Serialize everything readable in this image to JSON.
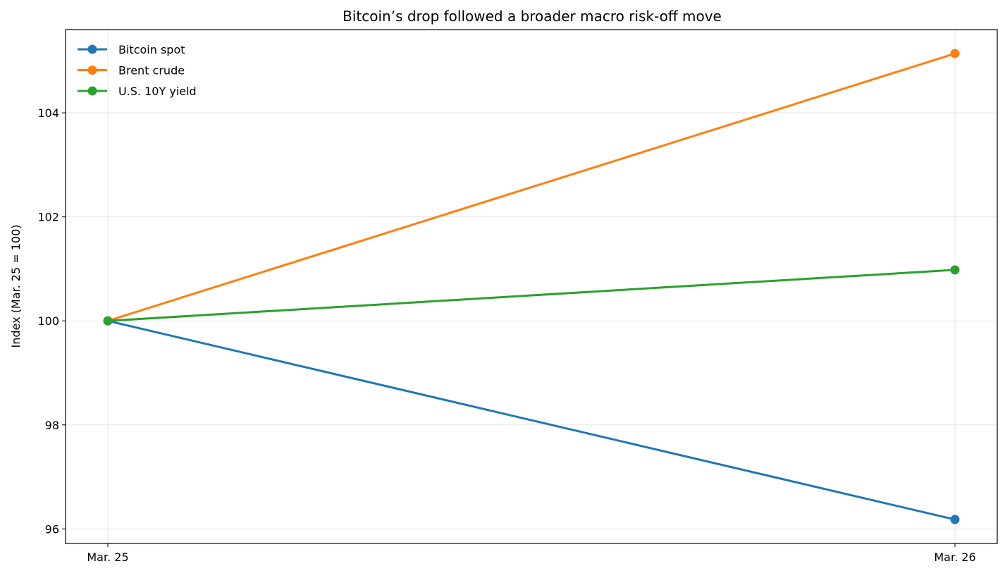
{
  "chart_data": {
    "type": "line",
    "title": "Bitcoin’s drop followed a broader macro risk-off move",
    "xlabel": "",
    "ylabel": "Index (Mar. 25 = 100)",
    "categories": [
      "Mar. 25",
      "Mar. 26"
    ],
    "series": [
      {
        "name": "Bitcoin spot",
        "values": [
          100,
          96.18
        ],
        "color": "#1f77b4"
      },
      {
        "name": "Brent crude",
        "values": [
          100,
          105.14
        ],
        "color": "#ff7f0e"
      },
      {
        "name": "U.S. 10Y yield",
        "values": [
          100,
          100.98
        ],
        "color": "#2ca02c"
      }
    ],
    "ylim": [
      95.72,
      105.6
    ],
    "yticks": [
      96,
      98,
      100,
      102,
      104
    ],
    "grid": true,
    "legend": "top-left"
  }
}
